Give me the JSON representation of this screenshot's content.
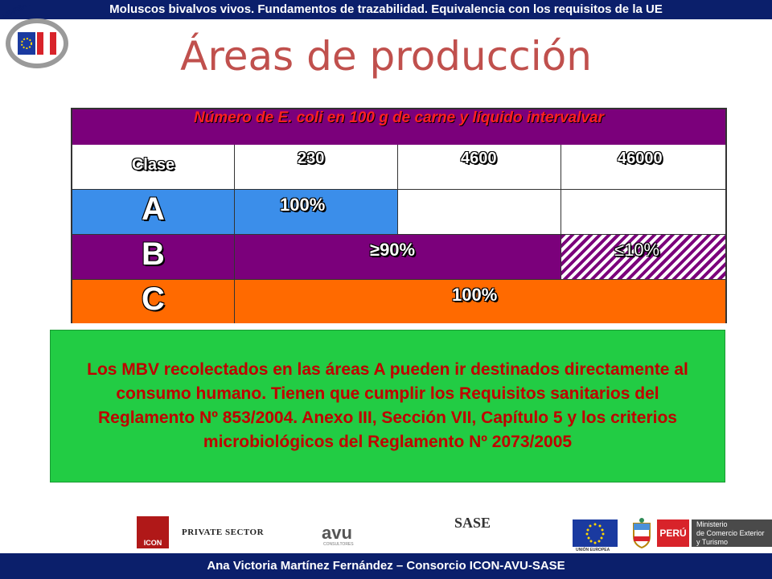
{
  "header": {
    "text": "Moluscos bivalvos vivos. Fundamentos de trazabilidad. Equivalencia con los requisitos de la UE"
  },
  "title": "Áreas de producción",
  "table": {
    "header_pre": "Número de ",
    "header_italic": "E. coli",
    "header_post": " en 100 g de carne y líquido intervalvar",
    "clase_label": "Clase",
    "thresholds": [
      "230",
      "4600",
      "46000"
    ],
    "rows": [
      {
        "class": "A",
        "value": "100%",
        "color": "#3b8eea"
      },
      {
        "class": "B",
        "value": "≥90%",
        "value2": "≤10%",
        "color": "#7b007b"
      },
      {
        "class": "C",
        "value": "100%",
        "color": "#ff6a00"
      }
    ]
  },
  "note": {
    "text": "Los MBV recolectados en  las áreas A pueden ir destinados directamente al consumo humano. Tienen que cumplir los Requisitos sanitarios del Reglamento Nº 853/2004. Anexo III, Sección VII, Capítulo 5 y los criterios microbiológicos  del Reglamento Nº 2073/2005"
  },
  "logos": {
    "ue_peru": "UE-PERÚ / PENX",
    "icon": "ICON",
    "icon_sub": "INSTITUTE",
    "private_sector": "PRIVATE SECTOR",
    "avu": "avu",
    "avu_sub": "CONSULTORES",
    "sase": "SASE",
    "eu_caption": "UNIÓN EUROPEA",
    "peru": "PERÚ",
    "ministry_lines": [
      "Ministerio",
      "de Comercio Exterior",
      "y Turismo"
    ]
  },
  "footer": {
    "text": "Ana Victoria Martínez Fernández – Consorcio ICON-AVU-SASE"
  },
  "colors": {
    "navy": "#0b1f6b",
    "title": "#c0504d",
    "purple": "#7b007b",
    "blue": "#3b8eea",
    "orange": "#ff6a00",
    "green": "#22cc44",
    "note_text": "#c00000"
  }
}
